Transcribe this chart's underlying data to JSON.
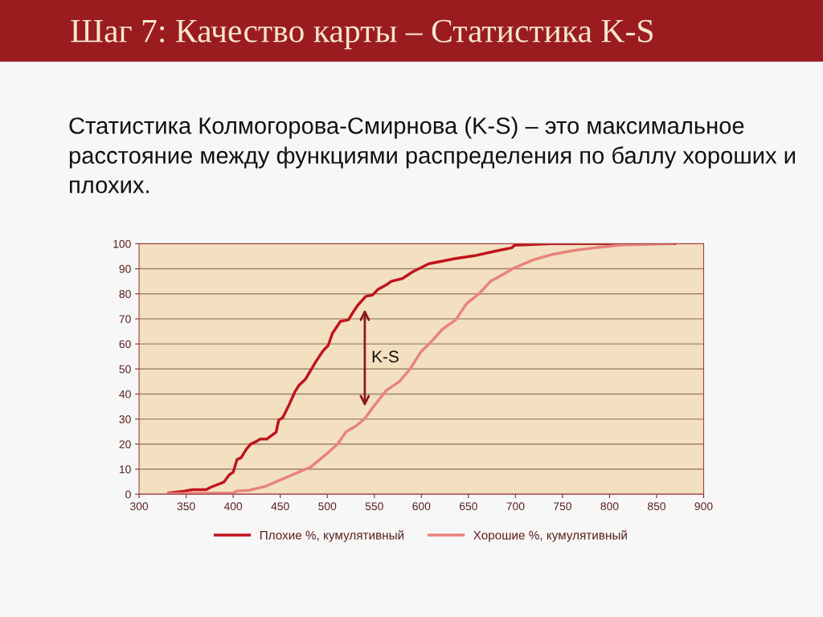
{
  "chart_data": {
    "type": "line",
    "title": "Шаг 7: Качество карты – Статистика K-S",
    "subtitle": "Статистика Колмогорова-Смирнова (K-S) – это максимальное расстояние между функциями распределения по баллу хороших и плохих.",
    "xlim": [
      300,
      900
    ],
    "xticks": [
      300,
      350,
      400,
      450,
      500,
      550,
      600,
      650,
      700,
      750,
      800,
      850,
      900
    ],
    "ylim": [
      0,
      100
    ],
    "yticks": [
      0,
      10,
      20,
      30,
      40,
      50,
      60,
      70,
      80,
      90,
      100
    ],
    "grid": "y",
    "legend": "bottom",
    "marker": "none",
    "line_style": "solid",
    "annotations": [
      "K-S"
    ],
    "series": [
      {
        "name": "Плохие %, кумулятивный",
        "color": "#c0141c",
        "x": [
          331.6,
          348.7,
          357,
          371.5,
          375.6,
          390,
          395.7,
          400,
          404,
          408.5,
          414,
          418.5,
          425.3,
          428.5,
          435.6,
          445.6,
          448.4,
          452.7,
          459.8,
          465.5,
          469.8,
          477,
          488,
          495.6,
          501,
          505.4,
          514,
          522.5,
          526.8,
          532.5,
          541,
          548,
          554,
          562.4,
          568,
          579.8,
          590.9,
          608,
          636.5,
          656.4,
          682,
          696.3,
          699,
          739,
          869
        ],
        "values": [
          0.5,
          1.3,
          1.8,
          1.8,
          2.7,
          4.8,
          7.7,
          8.8,
          13.8,
          14.6,
          18,
          20,
          21.2,
          22,
          22,
          24.8,
          29.6,
          30.6,
          36,
          40.8,
          43.4,
          46,
          53,
          57.3,
          59.4,
          64.2,
          69,
          69.6,
          72.3,
          75.5,
          79,
          79.5,
          81.8,
          83.5,
          85,
          86.1,
          88.8,
          92,
          94.1,
          95.2,
          97.3,
          98.4,
          99.4,
          100,
          100
        ]
      },
      {
        "name": "Хорошие %, кумулятивный",
        "color": "#e8847c",
        "x": [
          331.6,
          400,
          404,
          417,
          434,
          445.6,
          462.7,
          482.6,
          499.7,
          511,
          519.7,
          531,
          539.6,
          548,
          562.4,
          576.6,
          588,
          599.4,
          610.8,
          622.2,
          636.5,
          647.8,
          662,
          673.5,
          682,
          699,
          719,
          739,
          762,
          784.6,
          813,
          867
        ],
        "values": [
          0.2,
          0.5,
          1.3,
          1.6,
          3.1,
          5,
          7.7,
          10.9,
          16.2,
          20,
          24.8,
          27.4,
          30.1,
          34.4,
          41.3,
          45,
          50,
          56.8,
          61,
          65.8,
          69.6,
          76,
          80.3,
          85,
          86.7,
          90.4,
          93.6,
          95.7,
          97.3,
          98.4,
          99.5,
          100
        ]
      }
    ]
  }
}
